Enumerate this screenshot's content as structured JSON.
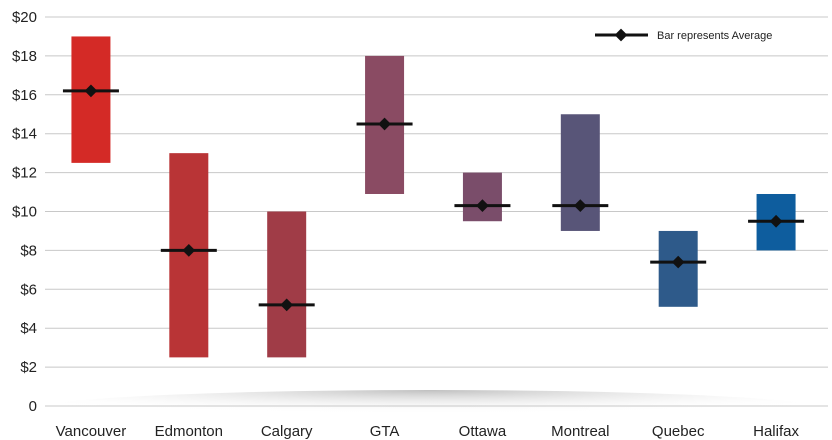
{
  "chart_data": {
    "type": "range-bar",
    "categories": [
      "Vancouver",
      "Edmonton",
      "Calgary",
      "GTA",
      "Ottawa",
      "Montreal",
      "Quebec",
      "Halifax"
    ],
    "series": [
      {
        "values": [
          {
            "low": 12.5,
            "high": 19.0,
            "avg": 16.2
          },
          {
            "low": 2.5,
            "high": 13.0,
            "avg": 8.0
          },
          {
            "low": 2.5,
            "high": 10.0,
            "avg": 5.2
          },
          {
            "low": 10.9,
            "high": 18.0,
            "avg": 14.5
          },
          {
            "low": 9.5,
            "high": 12.0,
            "avg": 10.3
          },
          {
            "low": 9.0,
            "high": 15.0,
            "avg": 10.3
          },
          {
            "low": 5.1,
            "high": 9.0,
            "avg": 7.4
          },
          {
            "low": 8.0,
            "high": 10.9,
            "avg": 9.5
          }
        ]
      }
    ],
    "colors": [
      "#d42a26",
      "#b93436",
      "#a03c47",
      "#8a4b63",
      "#7a4d6a",
      "#585578",
      "#2e5a8a",
      "#0e5d9e"
    ],
    "yticks": [
      "0",
      "$2",
      "$4",
      "$6",
      "$8",
      "$10",
      "$12",
      "$14",
      "$16",
      "$18",
      "$20"
    ],
    "ylim": [
      0,
      20
    ],
    "grid": true,
    "legend": {
      "label": "Bar represents Average",
      "position": "top-right"
    }
  }
}
